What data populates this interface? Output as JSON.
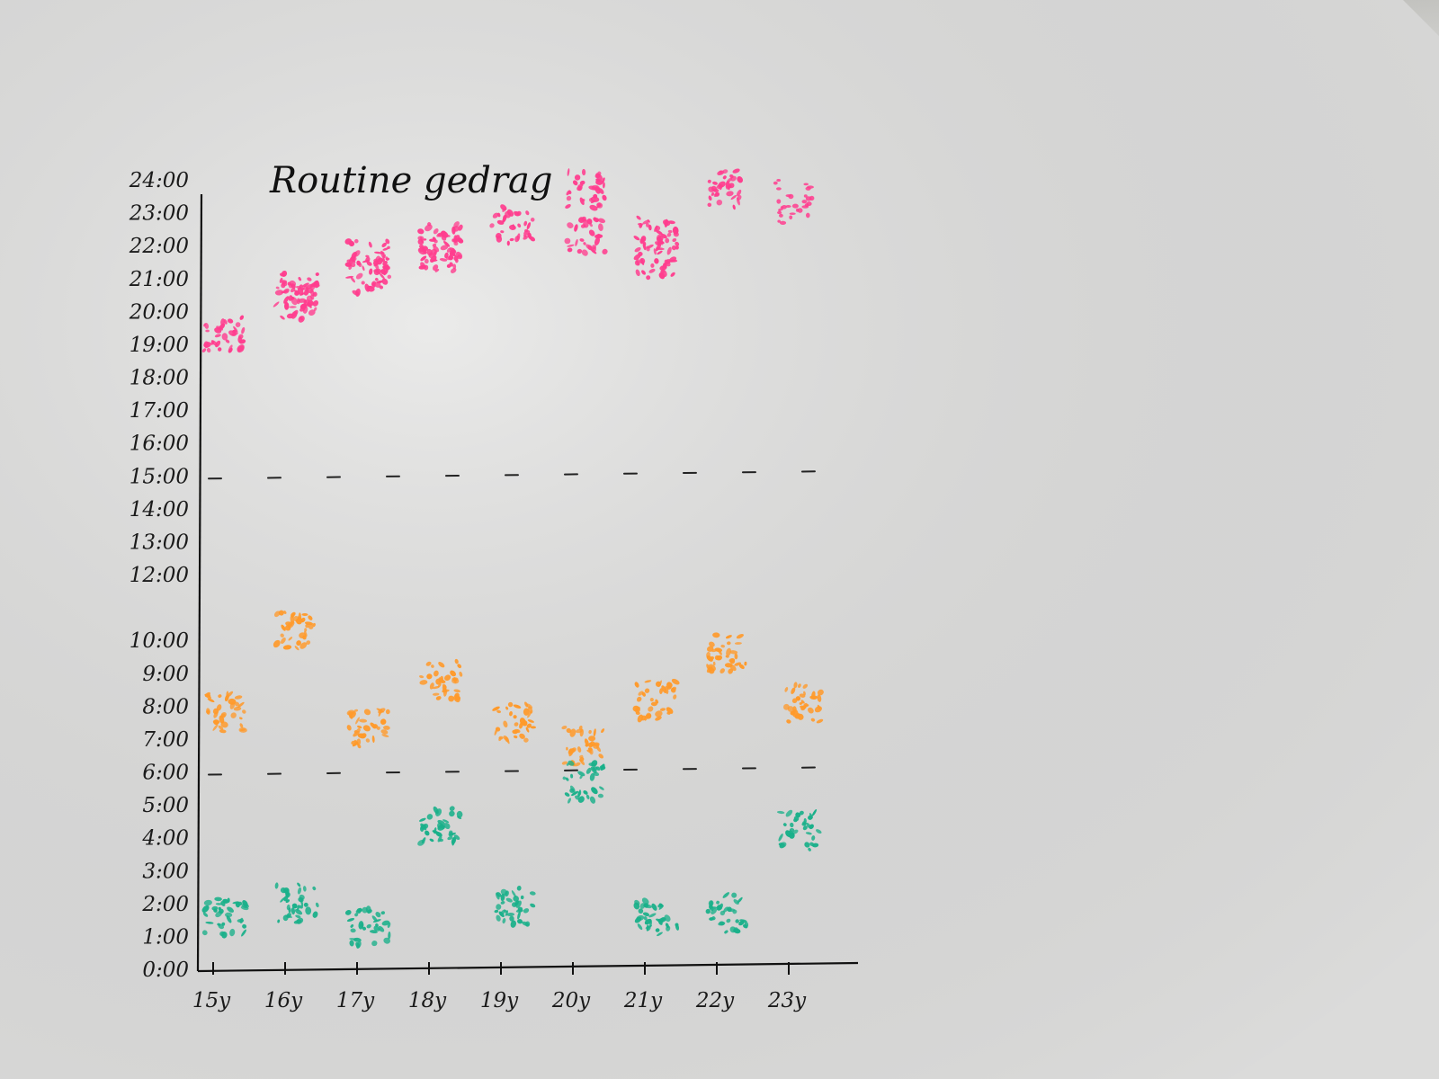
{
  "chart_data": {
    "type": "scatter",
    "title": "Routine gedrag",
    "xlabel": "",
    "ylabel": "",
    "x_ticks": [
      "15y",
      "16y",
      "17y",
      "18y",
      "19y",
      "20y",
      "21y",
      "22y",
      "23y"
    ],
    "y_ticks": [
      "0:00",
      "1:00",
      "2:00",
      "3:00",
      "4:00",
      "5:00",
      "6:00",
      "7:00",
      "8:00",
      "9:00",
      "10:00",
      "12:00",
      "13:00",
      "14:00",
      "15:00",
      "16:00",
      "17:00",
      "18:00",
      "19:00",
      "20:00",
      "21:00",
      "22:00",
      "23:00",
      "24:00"
    ],
    "reference_lines": [
      {
        "y": 6
      },
      {
        "y": 15
      }
    ],
    "grid": false,
    "legend": "none",
    "series": [
      {
        "color": "#ff3d8e",
        "x": [
          "15y",
          "16y",
          "16y",
          "17y",
          "17y",
          "18y",
          "18y",
          "19y",
          "20y",
          "20y",
          "21y",
          "21y",
          "22y",
          "23y"
        ],
        "y": [
          19.3,
          20.3,
          20.6,
          21.1,
          21.6,
          21.8,
          22.1,
          22.6,
          23.7,
          22.3,
          22.3,
          21.6,
          23.7,
          null
        ]
      },
      {
        "color": "#ff9a2b",
        "x": [
          "15y",
          "16y",
          "17y",
          "18y",
          "19y",
          "20y",
          "21y",
          "22y",
          "23y"
        ],
        "y": [
          7.8,
          10.3,
          7.3,
          8.8,
          7.5,
          6.8,
          8.2,
          9.6,
          8.1
        ]
      },
      {
        "color": "#1ab08a",
        "x": [
          "15y",
          "16y",
          "17y",
          "18y",
          "19y",
          "20y",
          "21y",
          "22y",
          "23y"
        ],
        "y": [
          1.6,
          2.0,
          1.3,
          4.4,
          1.9,
          5.7,
          1.6,
          1.7,
          4.2
        ]
      }
    ]
  }
}
